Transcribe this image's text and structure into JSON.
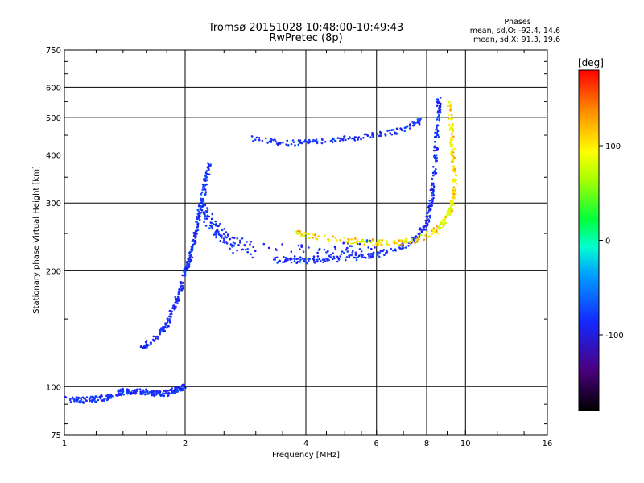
{
  "chart_data": {
    "type": "scatter",
    "title": "Tromsø 20151028 10:48:00-10:49:43",
    "subtitle": "RwPretec (8p)",
    "xlabel": "Frequency [MHz]",
    "ylabel": "Stationary phase Virtual Height [km]",
    "x_scale": "log",
    "y_scale": "log",
    "xlim": [
      1,
      16
    ],
    "ylim": [
      75,
      750
    ],
    "x_ticks": [
      "1",
      "2",
      "4",
      "6",
      "8",
      "10",
      "16"
    ],
    "y_ticks": [
      "75",
      "100",
      "200",
      "300",
      "400",
      "500",
      "600",
      "750"
    ],
    "grid": true,
    "stats": {
      "heading": "Phases",
      "o_line": "mean, sd,O: -92.4, 14.6",
      "x_line": "mean, sd,X:  91.3, 19.6"
    },
    "colorbar": {
      "label": "[deg]",
      "range": [
        -180,
        180
      ],
      "ticks": [
        "100",
        "0",
        "-100"
      ],
      "tick_values": [
        100,
        0,
        -100
      ]
    },
    "traces": [
      {
        "id": "E region",
        "mode": "O",
        "points": [
          [
            1.0,
            93
          ],
          [
            1.1,
            92
          ],
          [
            1.2,
            93
          ],
          [
            1.3,
            94
          ],
          [
            1.4,
            97
          ],
          [
            1.5,
            97
          ],
          [
            1.6,
            97
          ],
          [
            1.7,
            96
          ],
          [
            1.8,
            96
          ],
          [
            1.9,
            98
          ],
          [
            2.0,
            100
          ]
        ]
      },
      {
        "id": "F1 rise",
        "mode": "O",
        "points": [
          [
            1.55,
            125
          ],
          [
            1.7,
            135
          ],
          [
            1.8,
            145
          ],
          [
            1.9,
            165
          ],
          [
            1.95,
            180
          ],
          [
            2.0,
            200
          ],
          [
            2.05,
            215
          ],
          [
            2.1,
            235
          ],
          [
            2.15,
            270
          ],
          [
            2.2,
            300
          ],
          [
            2.25,
            340
          ],
          [
            2.3,
            380
          ]
        ]
      },
      {
        "id": "F1 cusp",
        "mode": "O",
        "points": [
          [
            2.2,
            290
          ],
          [
            2.3,
            270
          ],
          [
            2.4,
            255
          ],
          [
            2.6,
            235
          ],
          [
            3.0,
            225
          ],
          [
            4.0,
            222
          ],
          [
            5.0,
            226
          ],
          [
            6.0,
            230
          ]
        ]
      },
      {
        "id": "F2 O-trace",
        "mode": "O",
        "points": [
          [
            3.3,
            213
          ],
          [
            4.0,
            212
          ],
          [
            5.0,
            215
          ],
          [
            6.0,
            220
          ],
          [
            7.0,
            232
          ],
          [
            7.6,
            245
          ],
          [
            8.0,
            265
          ],
          [
            8.2,
            300
          ],
          [
            8.35,
            350
          ],
          [
            8.45,
            420
          ],
          [
            8.55,
            500
          ],
          [
            8.6,
            570
          ]
        ]
      },
      {
        "id": "F2 X-trace",
        "mode": "X",
        "points": [
          [
            3.8,
            250
          ],
          [
            4.5,
            243
          ],
          [
            5.5,
            238
          ],
          [
            6.5,
            236
          ],
          [
            7.5,
            240
          ],
          [
            8.5,
            255
          ],
          [
            9.0,
            275
          ],
          [
            9.3,
            300
          ],
          [
            9.4,
            340
          ],
          [
            9.3,
            400
          ],
          [
            9.2,
            470
          ],
          [
            9.1,
            550
          ]
        ]
      },
      {
        "id": "Multihop echo",
        "mode": "O",
        "points": [
          [
            2.9,
            442
          ],
          [
            3.5,
            430
          ],
          [
            4.2,
            432
          ],
          [
            5.0,
            440
          ],
          [
            6.0,
            450
          ],
          [
            7.0,
            465
          ],
          [
            7.7,
            490
          ]
        ]
      }
    ]
  }
}
